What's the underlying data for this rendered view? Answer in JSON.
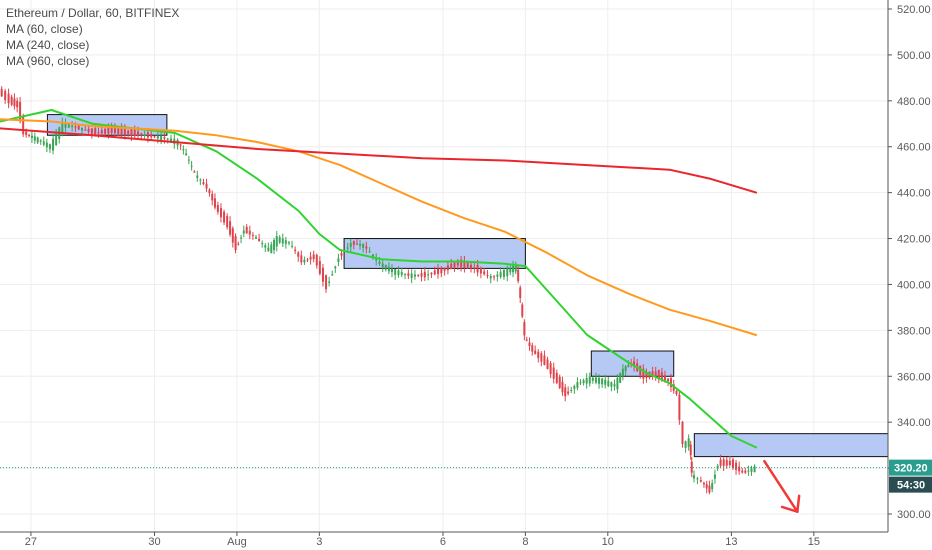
{
  "header": {
    "title": "Ethereum / Dollar, 60, BITFINEX",
    "indicators": [
      "MA (60, close)",
      "MA (240, close)",
      "MA (960, close)"
    ]
  },
  "colors": {
    "up": "#3aa655",
    "down": "#e0424a",
    "ma60": "#2fd32f",
    "ma240": "#ff9a1f",
    "ma960": "#e8262b",
    "zone_fill": "#a9bff2",
    "price_line": "#2aa08a",
    "price_tag": "#2a9d8f",
    "countdown_tag": "#2a4d52",
    "arrow": "#f03a3a"
  },
  "chart_data": {
    "type": "line",
    "title": "Ethereum / Dollar, 60, BITFINEX",
    "xlabel": "",
    "ylabel": "",
    "ylim": [
      296,
      523
    ],
    "y_ticks": [
      300,
      320,
      340,
      360,
      380,
      400,
      420,
      440,
      460,
      480,
      500,
      520
    ],
    "y_tick_labels": [
      "300.00",
      "320.00",
      "340.00",
      "360.00",
      "380.00",
      "400.00",
      "420.00",
      "440.00",
      "460.00",
      "480.00",
      "500.00",
      "520.00"
    ],
    "x_ticks": [
      0,
      3,
      5,
      7,
      10,
      12,
      14,
      17,
      19
    ],
    "x_tick_labels": [
      "27",
      "30",
      "Aug",
      "3",
      "6",
      "8",
      "10",
      "13",
      "15"
    ],
    "xlim": [
      -0.75,
      20.8
    ],
    "grid": true,
    "last_price": "320.20",
    "countdown": "54:30",
    "price_path": [
      [
        -0.75,
        484
      ],
      [
        -0.5,
        480
      ],
      [
        -0.3,
        478
      ],
      [
        -0.15,
        466
      ],
      [
        0.2,
        463
      ],
      [
        0.5,
        460
      ],
      [
        0.8,
        470
      ],
      [
        1.2,
        468
      ],
      [
        1.6,
        466
      ],
      [
        2.0,
        467
      ],
      [
        2.4,
        466
      ],
      [
        2.8,
        465
      ],
      [
        3.2,
        464
      ],
      [
        3.6,
        462
      ],
      [
        3.8,
        456
      ],
      [
        4.0,
        448
      ],
      [
        4.3,
        442
      ],
      [
        4.5,
        434
      ],
      [
        4.8,
        426
      ],
      [
        5.0,
        416
      ],
      [
        5.2,
        424
      ],
      [
        5.5,
        420
      ],
      [
        5.8,
        415
      ],
      [
        6.0,
        420
      ],
      [
        6.3,
        418
      ],
      [
        6.6,
        410
      ],
      [
        6.9,
        412
      ],
      [
        7.2,
        399
      ],
      [
        7.5,
        412
      ],
      [
        7.8,
        418
      ],
      [
        8.1,
        417
      ],
      [
        8.5,
        409
      ],
      [
        8.8,
        406
      ],
      [
        9.2,
        404
      ],
      [
        9.6,
        404
      ],
      [
        10.0,
        406
      ],
      [
        10.4,
        409
      ],
      [
        10.8,
        407
      ],
      [
        11.2,
        403
      ],
      [
        11.6,
        406
      ],
      [
        11.8,
        408
      ],
      [
        11.9,
        393
      ],
      [
        12.0,
        377
      ],
      [
        12.2,
        371
      ],
      [
        12.5,
        366
      ],
      [
        12.8,
        358
      ],
      [
        13.0,
        352
      ],
      [
        13.3,
        357
      ],
      [
        13.6,
        359
      ],
      [
        13.9,
        358
      ],
      [
        14.2,
        356
      ],
      [
        14.4,
        363
      ],
      [
        14.6,
        366
      ],
      [
        14.9,
        360
      ],
      [
        15.2,
        361
      ],
      [
        15.5,
        358
      ],
      [
        15.7,
        352
      ],
      [
        15.85,
        330
      ],
      [
        16.0,
        332
      ],
      [
        16.05,
        317
      ],
      [
        16.3,
        314
      ],
      [
        16.5,
        310
      ],
      [
        16.7,
        322
      ],
      [
        17.0,
        322
      ],
      [
        17.3,
        318
      ],
      [
        17.6,
        320
      ]
    ],
    "series": [
      {
        "name": "MA (60, close)",
        "x": [
          -0.75,
          0.5,
          1.5,
          2.5,
          3.5,
          4.5,
          5.5,
          6.5,
          7.0,
          7.5,
          8.5,
          9.5,
          10.5,
          11.5,
          12.0,
          12.5,
          13.5,
          14.5,
          15.0,
          15.5,
          16.0,
          16.5,
          17.0,
          17.6
        ],
        "values": [
          471,
          476,
          470,
          468,
          466,
          458,
          446,
          432,
          422,
          415,
          411,
          410,
          410,
          409,
          408,
          398,
          378,
          366,
          361,
          357,
          350,
          342,
          334,
          329
        ]
      },
      {
        "name": "MA (240, close)",
        "x": [
          -0.75,
          0.5,
          1.5,
          2.5,
          3.5,
          4.5,
          5.5,
          6.5,
          7.5,
          8.5,
          9.5,
          10.5,
          11.5,
          12.5,
          13.5,
          14.5,
          15.5,
          16.5,
          17.6
        ],
        "values": [
          472,
          471,
          469,
          468,
          467,
          465,
          462,
          458,
          452,
          444,
          436,
          429,
          423,
          414,
          404,
          396,
          389,
          384,
          378
        ]
      },
      {
        "name": "MA (960, close)",
        "x": [
          -0.75,
          1.5,
          3.5,
          5.5,
          7.5,
          9.5,
          11.5,
          13.5,
          15.5,
          16.5,
          17.6
        ],
        "values": [
          468,
          465,
          462,
          459,
          457,
          455,
          454,
          452,
          450,
          446,
          440
        ]
      }
    ],
    "zones": [
      {
        "x": [
          0.4,
          3.3
        ],
        "y": [
          465,
          474
        ]
      },
      {
        "x": [
          7.6,
          12.0
        ],
        "y": [
          407,
          420
        ]
      },
      {
        "x": [
          13.6,
          15.6
        ],
        "y": [
          360,
          371
        ]
      },
      {
        "x": [
          16.1,
          20.8
        ],
        "y": [
          325,
          335
        ]
      }
    ],
    "projection_arrow": {
      "x": [
        17.8,
        18.6
      ],
      "y": [
        323,
        301
      ]
    }
  }
}
